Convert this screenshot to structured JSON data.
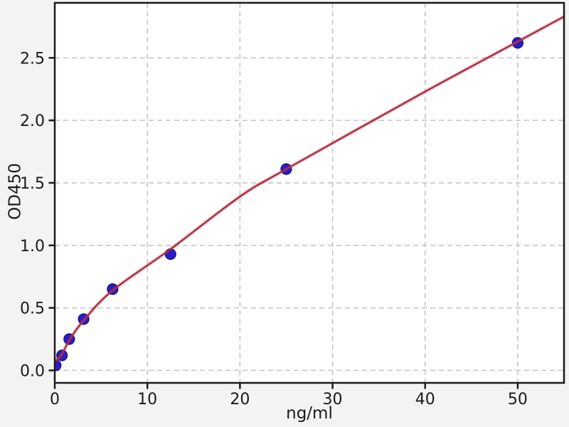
{
  "figure": {
    "background_color": "#f3f3f1",
    "plot_background_color": "#ffffff"
  },
  "chart_data": {
    "type": "scatter",
    "title": "",
    "xlabel": "ng/ml",
    "ylabel": "OD450",
    "xlim": [
      0,
      55
    ],
    "ylim": [
      -0.1,
      2.94
    ],
    "xticks": [
      0,
      10,
      20,
      30,
      40,
      50
    ],
    "xtick_labels": [
      "0",
      "10",
      "20",
      "30",
      "40",
      "50"
    ],
    "yticks": [
      0,
      0.5,
      1,
      1.5,
      2,
      2.5
    ],
    "ytick_labels": [
      "0.0",
      "0.5",
      "1.0",
      "1.5",
      "2.0",
      "2.5"
    ],
    "grid": true,
    "grid_style": "dashed",
    "legend": false,
    "series": [
      {
        "name": "standard-points",
        "kind": "scatter",
        "color": "#2a1cc8",
        "edge_color": "#15107e",
        "points": [
          [
            0.1,
            0.04
          ],
          [
            0.78,
            0.12
          ],
          [
            1.56,
            0.25
          ],
          [
            3.12,
            0.41
          ],
          [
            6.25,
            0.65
          ],
          [
            12.5,
            0.93
          ],
          [
            25,
            1.61
          ],
          [
            50,
            2.62
          ]
        ]
      },
      {
        "name": "fitted-curve",
        "kind": "line",
        "color": "#b12f3f",
        "points": [
          [
            0,
            0.07
          ],
          [
            0.78,
            0.13
          ],
          [
            1.56,
            0.24
          ],
          [
            3.12,
            0.4
          ],
          [
            6.25,
            0.64
          ],
          [
            12.5,
            0.97
          ],
          [
            20,
            1.39
          ],
          [
            25,
            1.61
          ],
          [
            40,
            2.23
          ],
          [
            50,
            2.63
          ],
          [
            55,
            2.83
          ]
        ]
      }
    ],
    "colors": {
      "grid": "#c2c2c2",
      "spine": "#1a1a1a",
      "tick_text": "#1a1a1a"
    }
  }
}
